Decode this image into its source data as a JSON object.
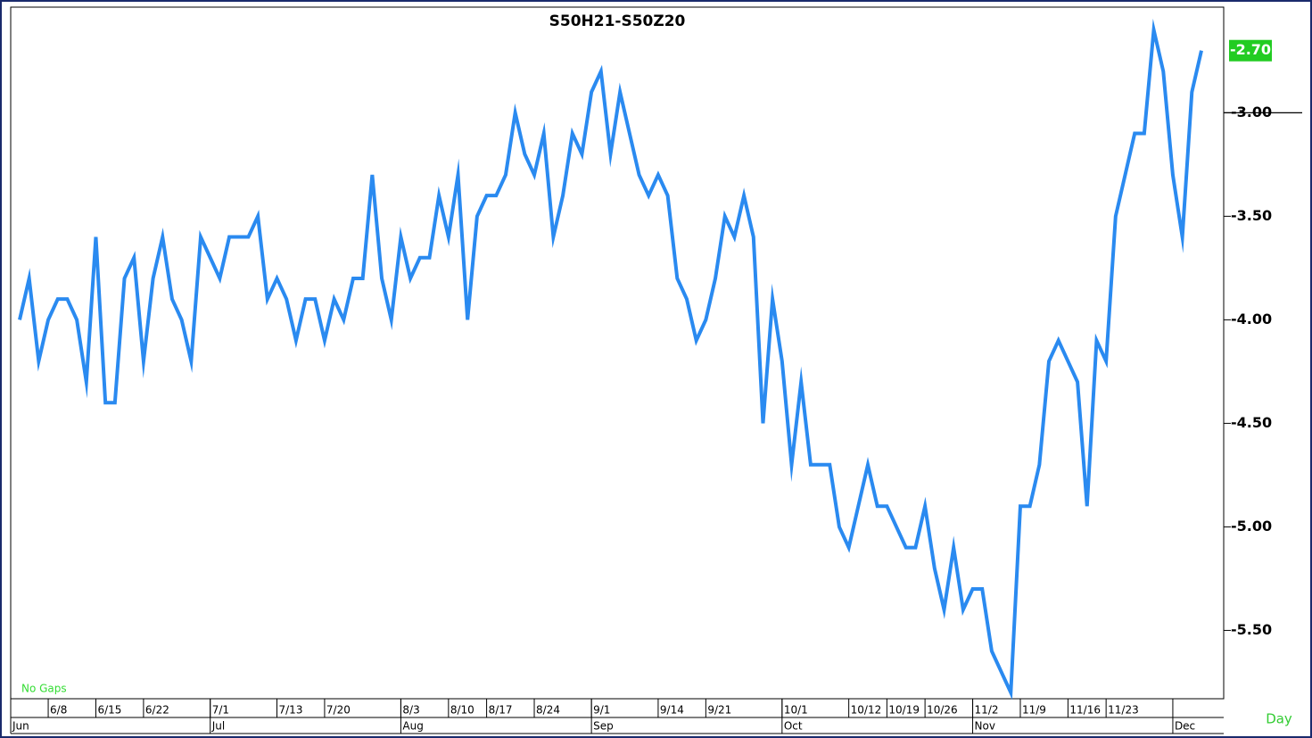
{
  "chart_data": {
    "type": "line",
    "title": "S50H21-S50Z20",
    "note": "No Gaps",
    "period": "Day",
    "last_value_label": "-2.70",
    "categories": [
      null,
      null,
      null,
      "6/8",
      null,
      null,
      null,
      null,
      "6/15",
      null,
      null,
      null,
      null,
      "6/22",
      null,
      null,
      null,
      null,
      null,
      null,
      "7/1",
      null,
      null,
      null,
      null,
      null,
      null,
      "7/13",
      null,
      null,
      null,
      null,
      "7/20",
      null,
      null,
      null,
      null,
      null,
      null,
      null,
      "8/3",
      null,
      null,
      null,
      null,
      "8/10",
      null,
      null,
      null,
      "8/17",
      null,
      null,
      null,
      null,
      "8/24",
      null,
      null,
      null,
      null,
      null,
      "9/1",
      null,
      null,
      null,
      null,
      null,
      null,
      "9/14",
      null,
      null,
      null,
      null,
      "9/21",
      null,
      null,
      null,
      null,
      null,
      null,
      null,
      "10/1",
      null,
      null,
      null,
      null,
      null,
      null,
      "10/12",
      null,
      null,
      null,
      "10/19",
      null,
      null,
      null,
      "10/26",
      null,
      null,
      null,
      null,
      "11/2",
      null,
      null,
      null,
      null,
      "11/9",
      null,
      null,
      null,
      null,
      "11/16",
      null,
      null,
      null,
      "11/23",
      null,
      null,
      null,
      null,
      null,
      null,
      null,
      null,
      null,
      null
    ],
    "months": [
      "Jun",
      null,
      null,
      null,
      null,
      null,
      null,
      null,
      null,
      null,
      null,
      null,
      null,
      null,
      null,
      null,
      null,
      null,
      null,
      null,
      "Jul",
      null,
      null,
      null,
      null,
      null,
      null,
      null,
      null,
      null,
      null,
      null,
      null,
      null,
      null,
      null,
      null,
      null,
      null,
      null,
      "Aug",
      null,
      null,
      null,
      null,
      null,
      null,
      null,
      null,
      null,
      null,
      null,
      null,
      null,
      null,
      null,
      null,
      null,
      null,
      null,
      "Sep",
      null,
      null,
      null,
      null,
      null,
      null,
      null,
      null,
      null,
      null,
      null,
      null,
      null,
      null,
      null,
      null,
      null,
      null,
      null,
      "Oct",
      null,
      null,
      null,
      null,
      null,
      null,
      null,
      null,
      null,
      null,
      null,
      null,
      null,
      null,
      null,
      null,
      null,
      null,
      null,
      "Nov",
      null,
      null,
      null,
      null,
      null,
      null,
      null,
      null,
      null,
      null,
      null,
      null,
      null,
      null,
      null,
      null,
      null,
      null,
      null,
      null,
      "Dec",
      null,
      null,
      null
    ],
    "series": [
      {
        "color": "#2a8af0",
        "values": [
          -4.0,
          -3.8,
          -4.2,
          -4.0,
          -3.9,
          -3.9,
          -4.0,
          -4.3,
          -3.6,
          -4.4,
          -4.4,
          -3.8,
          -3.7,
          -4.2,
          -3.8,
          -3.6,
          -3.9,
          -4.0,
          -4.2,
          -3.6,
          -3.7,
          -3.8,
          -3.6,
          -3.6,
          -3.6,
          -3.5,
          -3.9,
          -3.8,
          -3.9,
          -4.1,
          -3.9,
          -3.9,
          -4.1,
          -3.9,
          -4.0,
          -3.8,
          -3.8,
          -3.3,
          -3.8,
          -4.0,
          -3.6,
          -3.8,
          -3.7,
          -3.7,
          -3.4,
          -3.6,
          -3.3,
          -4.0,
          -3.5,
          -3.4,
          -3.4,
          -3.3,
          -3.0,
          -3.2,
          -3.3,
          -3.1,
          -3.6,
          -3.4,
          -3.1,
          -3.2,
          -2.9,
          -2.8,
          -3.2,
          -2.9,
          -3.1,
          -3.3,
          -3.4,
          -3.3,
          -3.4,
          -3.8,
          -3.9,
          -4.1,
          -4.0,
          -3.8,
          -3.5,
          -3.6,
          -3.4,
          -3.6,
          -4.5,
          -3.9,
          -4.2,
          -4.7,
          -4.3,
          -4.7,
          -4.7,
          -4.7,
          -5.0,
          -5.1,
          -4.9,
          -4.7,
          -4.9,
          -4.9,
          -5.0,
          -5.1,
          -5.1,
          -4.9,
          -5.2,
          -5.4,
          -5.1,
          -5.4,
          -5.3,
          -5.3,
          -5.6,
          -5.7,
          -5.8,
          -4.9,
          -4.9,
          -4.7,
          -4.2,
          -4.1,
          -4.2,
          -4.3,
          -4.9,
          -4.1,
          -4.2,
          -3.5,
          -3.3,
          -3.1,
          -3.1,
          -2.6,
          -2.8,
          -3.3,
          -3.6,
          -2.9,
          -2.7
        ]
      }
    ],
    "ylim": [
      -5.83,
      -2.49
    ],
    "yticks": [
      {
        "value": -5.5,
        "label": "-5.50"
      },
      {
        "value": -5,
        "label": "-5.00"
      },
      {
        "value": -4.5,
        "label": "-4.50"
      },
      {
        "value": -4,
        "label": "-4.00"
      },
      {
        "value": -3.5,
        "label": "-3.50"
      },
      {
        "value": -3,
        "label": "-3.00"
      }
    ],
    "reference_line": -3,
    "last_color": "#22cc22"
  }
}
